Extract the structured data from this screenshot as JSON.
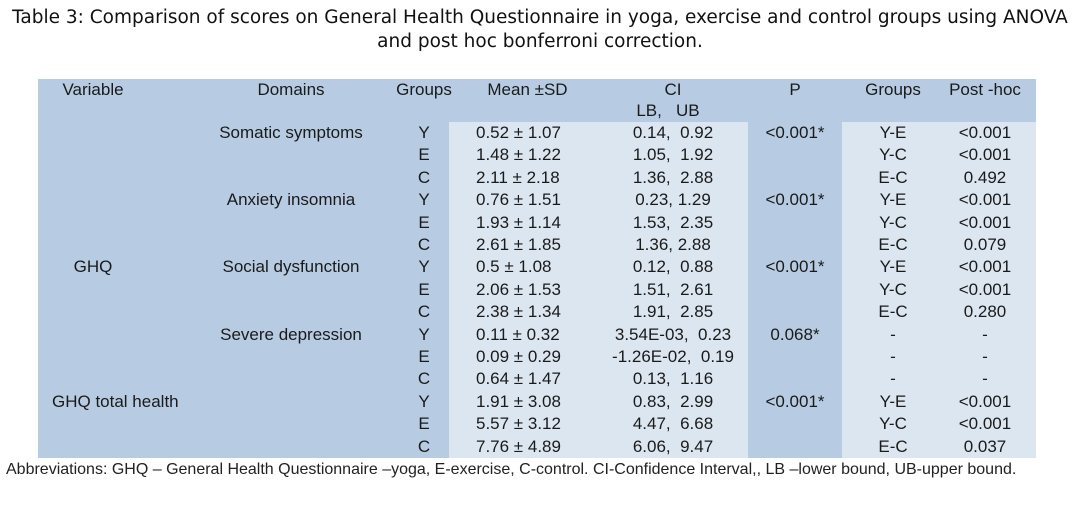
{
  "title": {
    "line1": "Table 3: Comparison of scores on General Health Questionnaire in yoga, exercise and control groups using ANOVA",
    "line2": "and post hoc bonferroni correction."
  },
  "colors": {
    "header_bg": "#b7cce3",
    "light_bg": "#dce6f1"
  },
  "headers": {
    "variable": "Variable",
    "domains": "Domains",
    "groups": "Groups",
    "mean_sd": "Mean ±SD",
    "ci": "CI",
    "ci_sub": "LB,   UB",
    "p": "P",
    "posthoc_groups": "Groups",
    "posthoc": "Post -hoc"
  },
  "rows": [
    {
      "variable": "",
      "domain": "Somatic symptoms",
      "group": "Y",
      "mean_sd": "0.52 ± 1.07",
      "ci": "0.14,  0.92",
      "p": "<0.001*",
      "pair": "Y-E",
      "posthoc": "<0.001"
    },
    {
      "variable": "",
      "domain": "",
      "group": "E",
      "mean_sd": "1.48 ± 1.22",
      "ci": "1.05,  1.92",
      "p": "",
      "pair": "Y-C",
      "posthoc": "<0.001"
    },
    {
      "variable": "",
      "domain": "",
      "group": "C",
      "mean_sd": "2.11 ± 2.18",
      "ci": "1.36,  2.88",
      "p": "",
      "pair": "E-C",
      "posthoc": "0.492"
    },
    {
      "variable": "",
      "domain": "Anxiety insomnia",
      "group": "Y",
      "mean_sd": "0.76 ± 1.51",
      "ci": "0.23, 1.29",
      "p": "<0.001*",
      "pair": "Y-E",
      "posthoc": "<0.001"
    },
    {
      "variable": "",
      "domain": "",
      "group": "E",
      "mean_sd": "1.93 ± 1.14",
      "ci": "1.53,  2.35",
      "p": "",
      "pair": "Y-C",
      "posthoc": "<0.001"
    },
    {
      "variable": "",
      "domain": "",
      "group": "C",
      "mean_sd": "2.61 ± 1.85",
      "ci": "1.36, 2.88",
      "p": "",
      "pair": "E-C",
      "posthoc": "0.079"
    },
    {
      "variable": "GHQ",
      "domain": "Social dysfunction",
      "group": "Y",
      "mean_sd": "0.5 ± 1.08",
      "ci": "0.12,  0.88",
      "p": "<0.001*",
      "pair": "Y-E",
      "posthoc": "<0.001"
    },
    {
      "variable": "",
      "domain": "",
      "group": "E",
      "mean_sd": "2.06 ± 1.53",
      "ci": "1.51,  2.61",
      "p": "",
      "pair": "Y-C",
      "posthoc": "<0.001"
    },
    {
      "variable": "",
      "domain": "",
      "group": "C",
      "mean_sd": "2.38 ± 1.34",
      "ci": "1.91,  2.85",
      "p": "",
      "pair": "E-C",
      "posthoc": "0.280"
    },
    {
      "variable": "",
      "domain": "Severe depression",
      "group": "Y",
      "mean_sd": "0.11 ± 0.32",
      "ci": "3.54E-03,  0.23",
      "p": "0.068*",
      "pair": "-",
      "posthoc": "-"
    },
    {
      "variable": "",
      "domain": "",
      "group": "E",
      "mean_sd": "0.09 ± 0.29",
      "ci": "-1.26E-02,  0.19",
      "p": "",
      "pair": "-",
      "posthoc": "-"
    },
    {
      "variable": "",
      "domain": "",
      "group": "C",
      "mean_sd": "0.64 ± 1.47",
      "ci": "0.13,  1.16",
      "p": "",
      "pair": "-",
      "posthoc": "-"
    },
    {
      "variable": "GHQ total health",
      "domain": "",
      "group": "Y",
      "mean_sd": "1.91 ± 3.08",
      "ci": "0.83,  2.99",
      "p": "<0.001*",
      "pair": "Y-E",
      "posthoc": "<0.001"
    },
    {
      "variable": "",
      "domain": "",
      "group": "E",
      "mean_sd": "5.57 ± 3.12",
      "ci": "4.47,  6.68",
      "p": "",
      "pair": "Y-C",
      "posthoc": "<0.001"
    },
    {
      "variable": "",
      "domain": "",
      "group": "C",
      "mean_sd": "7.76 ± 4.89",
      "ci": "6.06,  9.47",
      "p": "",
      "pair": "E-C",
      "posthoc": "0.037"
    }
  ],
  "footnote": "Abbreviations:  GHQ – General Health Questionnaire –yoga, E-exercise, C-control. CI-Confidence Interval,, LB –lower bound, UB-upper bound."
}
